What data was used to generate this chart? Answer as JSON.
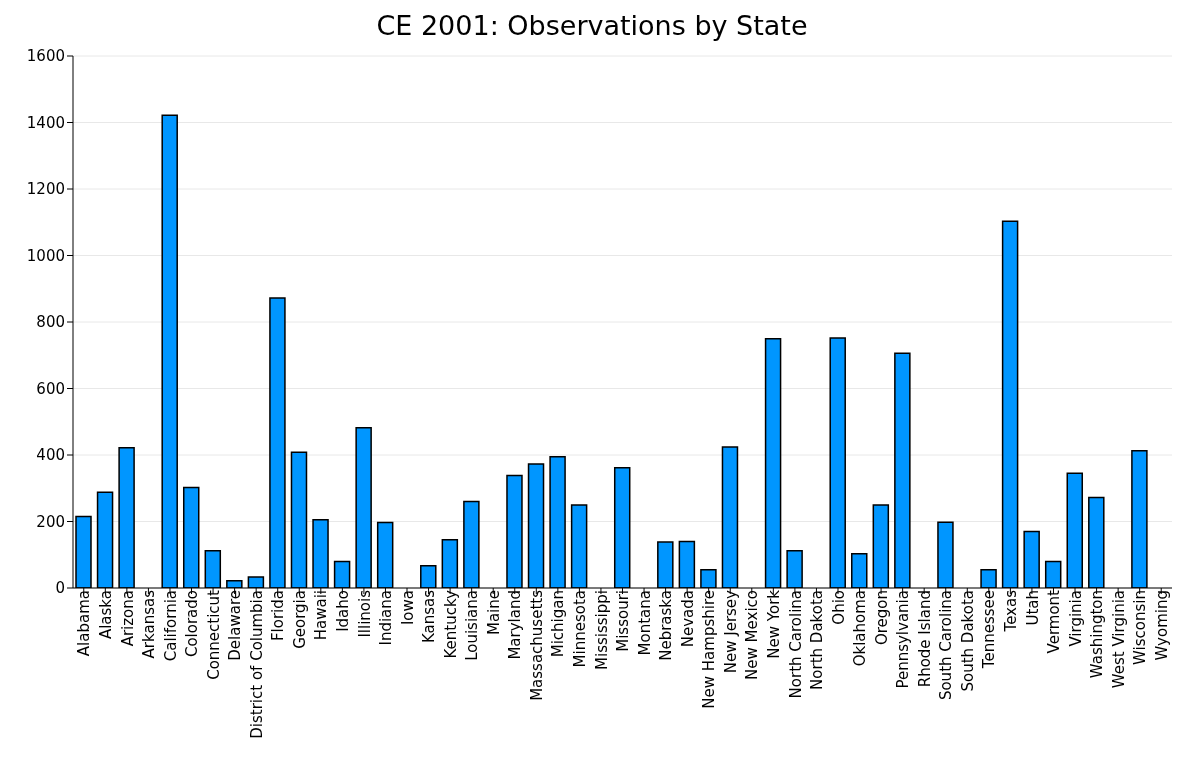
{
  "chart_data": {
    "type": "bar",
    "title": "CE 2001: Observations by State",
    "categories": [
      "Alabama",
      "Alaska",
      "Arizona",
      "Arkansas",
      "California",
      "Colorado",
      "Connecticut",
      "Delaware",
      "District of Columbia",
      "Florida",
      "Georgia",
      "Hawaii",
      "Idaho",
      "Illinois",
      "Indiana",
      "Iowa",
      "Kansas",
      "Kentucky",
      "Louisiana",
      "Maine",
      "Maryland",
      "Massachusetts",
      "Michigan",
      "Minnesota",
      "Mississippi",
      "Missouri",
      "Montana",
      "Nebraska",
      "Nevada",
      "New Hampshire",
      "New Jersey",
      "New Mexico",
      "New York",
      "North Carolina",
      "North Dakota",
      "Ohio",
      "Oklahoma",
      "Oregon",
      "Pennsylvania",
      "Rhode Island",
      "South Carolina",
      "South Dakota",
      "Tennessee",
      "Texas",
      "Utah",
      "Vermont",
      "Virginia",
      "Washington",
      "West Virginia",
      "Wisconsin",
      "Wyoming"
    ],
    "values": [
      215,
      288,
      422,
      0,
      1422,
      302,
      112,
      22,
      33,
      872,
      408,
      205,
      80,
      482,
      197,
      0,
      67,
      145,
      260,
      0,
      338,
      373,
      395,
      250,
      0,
      362,
      0,
      138,
      140,
      55,
      424,
      0,
      750,
      112,
      0,
      752,
      103,
      250,
      706,
      0,
      198,
      0,
      55,
      1103,
      170,
      80,
      345,
      272,
      0,
      413,
      0
    ],
    "color": "#0096ff",
    "ylim": [
      0,
      1600
    ],
    "yticks": [
      0,
      200,
      400,
      600,
      800,
      1000,
      1200,
      1400,
      1600
    ],
    "grid": "y"
  }
}
